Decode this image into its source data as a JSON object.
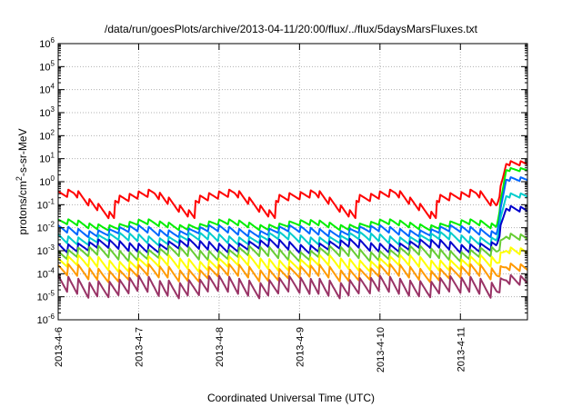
{
  "chart_data": {
    "type": "line",
    "title": "/data/run/goesPlots/archive/2013-04-11/20:00/flux/../flux/5daysMarsFluxes.txt",
    "xlabel": "Coordinated Universal Time (UTC)",
    "ylabel_parts": [
      "protons/cm",
      "2",
      "-s-sr-MeV"
    ],
    "y_scale": "log",
    "ylim": [
      1e-06,
      1000000.0
    ],
    "y_ticks": [
      {
        "base": "10",
        "exp": "-6",
        "value": -6
      },
      {
        "base": "10",
        "exp": "-5",
        "value": -5
      },
      {
        "base": "10",
        "exp": "-4",
        "value": -4
      },
      {
        "base": "10",
        "exp": "-3",
        "value": -3
      },
      {
        "base": "10",
        "exp": "-2",
        "value": -2
      },
      {
        "base": "10",
        "exp": "-1",
        "value": -1
      },
      {
        "base": "10",
        "exp": "0",
        "value": 0
      },
      {
        "base": "10",
        "exp": "1",
        "value": 1
      },
      {
        "base": "10",
        "exp": "2",
        "value": 2
      },
      {
        "base": "10",
        "exp": "3",
        "value": 3
      },
      {
        "base": "10",
        "exp": "4",
        "value": 4
      },
      {
        "base": "10",
        "exp": "5",
        "value": 5
      },
      {
        "base": "10",
        "exp": "6",
        "value": 6
      }
    ],
    "x_range_days": [
      "2013-04-06",
      "2013-04-11T20:00"
    ],
    "x_ticks": [
      "2013-4-6",
      "2013-4-7",
      "2013-4-8",
      "2013-4-9",
      "2013-4-10",
      "2013-4-11"
    ],
    "grid": true,
    "series": [
      {
        "color": "#ff0000",
        "base": [
          0.5,
          0.08,
          1.2
        ],
        "amp": 0.35,
        "level_log10": -0.6,
        "late_log10": 0.9
      },
      {
        "color": "#00ee00",
        "base": [
          0.02,
          0.01,
          0.03
        ],
        "amp": 0.25,
        "level_log10": -1.75,
        "late_log10": 0.6
      },
      {
        "color": "#0066ff",
        "base": [
          0.012,
          0.005,
          0.02
        ],
        "amp": 0.3,
        "level_log10": -2.0,
        "late_log10": 0.2
      },
      {
        "color": "#00cccc",
        "base": [
          0.006,
          0.002,
          0.01
        ],
        "amp": 0.35,
        "level_log10": -2.3,
        "late_log10": -0.5
      },
      {
        "color": "#0000cc",
        "base": [
          0.003,
          0.001,
          0.006
        ],
        "amp": 0.4,
        "level_log10": -2.6,
        "late_log10": -1.0
      },
      {
        "color": "#66cc33",
        "base": [
          0.0015,
          0.0005,
          0.003
        ],
        "amp": 0.45,
        "level_log10": -2.9,
        "late_log10": -2.2
      },
      {
        "color": "#ffff00",
        "base": [
          0.0008,
          0.0002,
          0.0015
        ],
        "amp": 0.5,
        "level_log10": -3.3,
        "late_log10": -2.8
      },
      {
        "color": "#ff9900",
        "base": [
          0.0004,
          0.0001,
          0.0008
        ],
        "amp": 0.55,
        "level_log10": -3.7,
        "late_log10": -3.5
      },
      {
        "color": "#993366",
        "base": [
          0.0002,
          2e-05,
          0.0004
        ],
        "amp": 0.75,
        "level_log10": -4.2,
        "late_log10": -4.0
      }
    ]
  }
}
